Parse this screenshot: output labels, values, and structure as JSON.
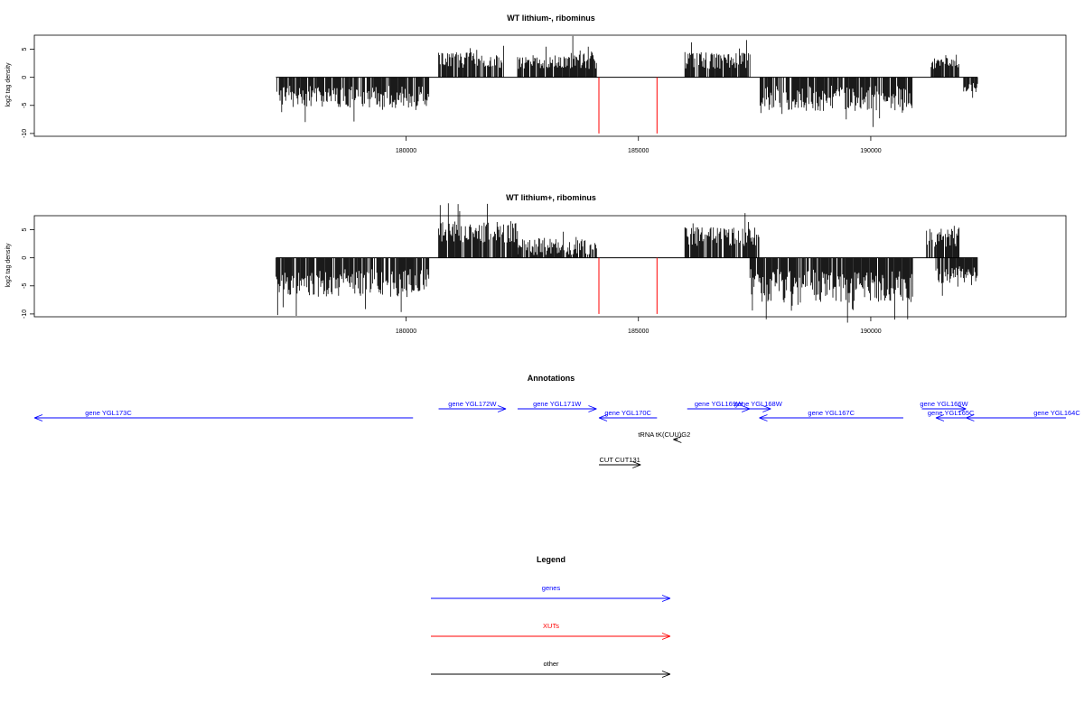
{
  "chart_data": [
    {
      "type": "bar",
      "title": "WT lithium-, ribominus",
      "ylabel": "log2 tag density",
      "xlim": [
        172000,
        194200
      ],
      "ylim": [
        -10.5,
        7.5
      ],
      "x_ticks": [
        180000,
        185000,
        190000
      ],
      "y_ticks": [
        -10,
        -5,
        0,
        5
      ],
      "x_tick_labels": [
        "180000",
        "185000",
        "190000"
      ],
      "y_tick_labels": [
        "-10",
        "-5",
        "0",
        "5"
      ],
      "series_color": "#000000",
      "segments": [
        {
          "start": 177200,
          "end": 180500,
          "strand": "minus",
          "min": -5.5,
          "max": -1.5
        },
        {
          "start": 180700,
          "end": 182100,
          "strand": "plus",
          "min": 1.5,
          "max": 4.5
        },
        {
          "start": 182400,
          "end": 183500,
          "strand": "plus",
          "min": 1.5,
          "max": 4
        },
        {
          "start": 183500,
          "end": 184100,
          "strand": "plus",
          "min": 1.5,
          "max": 5
        },
        {
          "start": 186000,
          "end": 187400,
          "strand": "plus",
          "min": 1.5,
          "max": 4.5
        },
        {
          "start": 187600,
          "end": 190900,
          "strand": "minus",
          "min": -6,
          "max": -1.5
        },
        {
          "start": 191300,
          "end": 191900,
          "strand": "plus",
          "min": 1.5,
          "max": 3.5
        },
        {
          "start": 192000,
          "end": 192300,
          "strand": "minus",
          "min": -3,
          "max": -1
        }
      ],
      "red_marks": [
        {
          "x": 184150,
          "y": -10
        },
        {
          "x": 185400,
          "y": -10
        }
      ]
    },
    {
      "type": "bar",
      "title": "WT lithium+, ribominus",
      "ylabel": "log2 tag density",
      "xlim": [
        172000,
        194200
      ],
      "ylim": [
        -10.5,
        7.5
      ],
      "x_ticks": [
        180000,
        185000,
        190000
      ],
      "y_ticks": [
        -10,
        -5,
        0,
        5
      ],
      "x_tick_labels": [
        "180000",
        "185000",
        "190000"
      ],
      "y_tick_labels": [
        "-10",
        "-5",
        "0",
        "5"
      ],
      "series_color": "#000000",
      "segments": [
        {
          "start": 177200,
          "end": 180500,
          "strand": "minus",
          "min": -7,
          "max": -2
        },
        {
          "start": 180700,
          "end": 182400,
          "strand": "plus",
          "min": 2.5,
          "max": 6.5
        },
        {
          "start": 182400,
          "end": 184100,
          "strand": "plus",
          "min": 0.5,
          "max": 3.5
        },
        {
          "start": 186000,
          "end": 187600,
          "strand": "plus",
          "min": 2,
          "max": 5.5
        },
        {
          "start": 187400,
          "end": 190900,
          "strand": "minus",
          "min": -8,
          "max": -2
        },
        {
          "start": 191200,
          "end": 191900,
          "strand": "plus",
          "min": 2,
          "max": 6
        },
        {
          "start": 191400,
          "end": 192300,
          "strand": "minus",
          "min": -5,
          "max": -1
        }
      ],
      "red_marks": [
        {
          "x": 184150,
          "y": -10
        },
        {
          "x": 185400,
          "y": -10
        }
      ]
    }
  ],
  "annotations": {
    "title": "Annotations",
    "features": [
      {
        "label": "gene YGL173C",
        "start": 172000,
        "end": 180150,
        "strand": "minus",
        "row": 2,
        "color": "#0000ff"
      },
      {
        "label": "gene YGL172W",
        "start": 180700,
        "end": 182150,
        "strand": "plus",
        "row": 1,
        "color": "#0000ff"
      },
      {
        "label": "gene YGL171W",
        "start": 182400,
        "end": 184100,
        "strand": "plus",
        "row": 1,
        "color": "#0000ff"
      },
      {
        "label": "gene YGL170C",
        "start": 184150,
        "end": 185400,
        "strand": "minus",
        "row": 2,
        "color": "#0000ff"
      },
      {
        "label": "gene YGL169W",
        "start": 186050,
        "end": 187400,
        "strand": "plus",
        "row": 1,
        "color": "#0000ff"
      },
      {
        "label": "gene YGL168W",
        "start": 187300,
        "end": 187850,
        "strand": "plus",
        "row": 1,
        "color": "#0000ff"
      },
      {
        "label": "gene YGL167C",
        "start": 187600,
        "end": 190700,
        "strand": "minus",
        "row": 2,
        "color": "#0000ff"
      },
      {
        "label": "gene YGL166W",
        "start": 191100,
        "end": 192050,
        "strand": "plus",
        "row": 1,
        "color": "#0000ff"
      },
      {
        "label": "gene YGL165C",
        "start": 191400,
        "end": 192050,
        "strand": "minus",
        "row": 2,
        "color": "#0000ff"
      },
      {
        "label": "gene YGL164C",
        "start": 192050,
        "end": 194200,
        "strand": "minus",
        "row": 2,
        "color": "#0000ff"
      },
      {
        "label": "tRNA tK(CUU)G2",
        "start": 185750,
        "end": 185850,
        "strand": "minus",
        "row": 3,
        "color": "#000000"
      },
      {
        "label": "CUT CUT131",
        "start": 184150,
        "end": 185050,
        "strand": "plus",
        "row": 4,
        "color": "#000000"
      }
    ]
  },
  "legend": {
    "title": "Legend",
    "items": [
      {
        "label": "genes",
        "color": "#0000ff"
      },
      {
        "label": "XUTs",
        "color": "#ff0000"
      },
      {
        "label": "other",
        "color": "#000000"
      }
    ]
  }
}
